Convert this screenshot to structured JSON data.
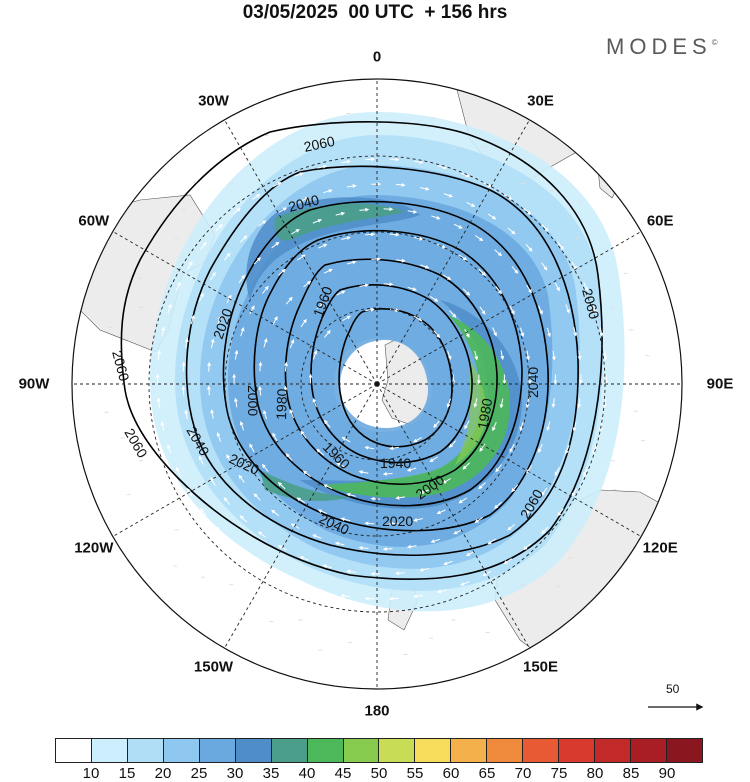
{
  "title": "03/05/2025  00 UTC  + 156 hrs",
  "brand": "MODES",
  "brand_mark": "©",
  "longitude_labels": [
    {
      "text": "0",
      "lon": 0
    },
    {
      "text": "30E",
      "lon": 30
    },
    {
      "text": "60E",
      "lon": 60
    },
    {
      "text": "90E",
      "lon": 90
    },
    {
      "text": "120E",
      "lon": 120
    },
    {
      "text": "150E",
      "lon": 150
    },
    {
      "text": "180",
      "lon": 180
    },
    {
      "text": "150W",
      "lon": -150
    },
    {
      "text": "120W",
      "lon": -120
    },
    {
      "text": "90W",
      "lon": -90
    },
    {
      "text": "60W",
      "lon": -60
    },
    {
      "text": "30W",
      "lon": -30
    }
  ],
  "contour_labels": [
    "2060",
    "2040",
    "2020",
    "2000",
    "1980",
    "1960",
    "1940"
  ],
  "reference_vector": {
    "label": "50"
  },
  "colorbar": {
    "colors": [
      "#ffffff",
      "#cdeefc",
      "#b0def7",
      "#8ec7ef",
      "#6aa9e0",
      "#4f8dc9",
      "#4a9e8a",
      "#4db85a",
      "#86cb4e",
      "#c9dc55",
      "#f7dc5c",
      "#f4b04a",
      "#ef8a3c",
      "#e85a33",
      "#d93a2e",
      "#c22a2a",
      "#a81e24",
      "#8a1620"
    ],
    "tick_labels": [
      "10",
      "15",
      "20",
      "25",
      "30",
      "35",
      "40",
      "45",
      "50",
      "55",
      "60",
      "65",
      "70",
      "75",
      "80",
      "85",
      "90"
    ]
  },
  "colors": {
    "land": "#ececec",
    "grid": "#222222",
    "contour": "#000000",
    "vector": "#ffffff"
  }
}
